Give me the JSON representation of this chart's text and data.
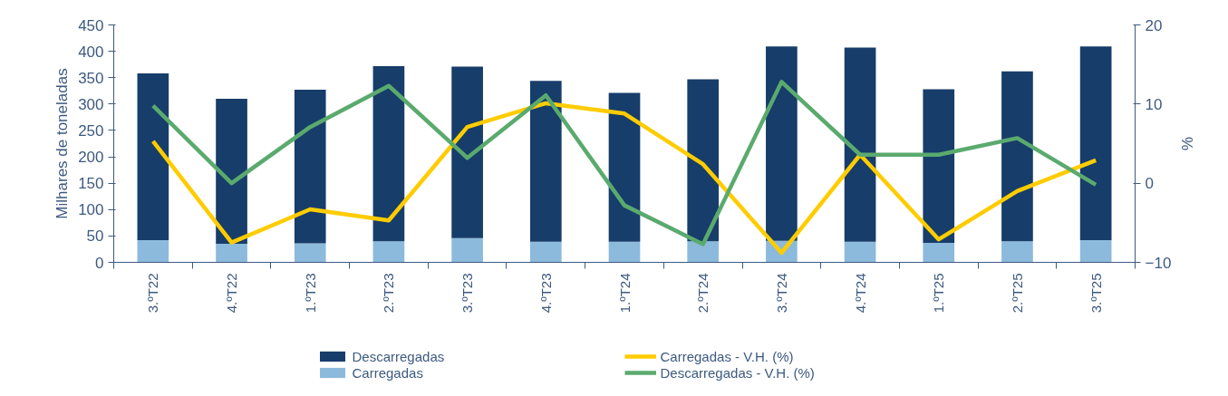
{
  "chart_data": {
    "type": "bar",
    "stacked": true,
    "categories": [
      "3.ºT22",
      "4.ºT22",
      "1.ºT23",
      "2.ºT23",
      "3.ºT23",
      "4.ºT23",
      "1.ºT24",
      "2.ºT24",
      "3.ºT24",
      "4.ºT24",
      "1.ºT25",
      "2.ºT25",
      "3.ºT25"
    ],
    "ylabel": "Milhares de toneladas",
    "y2label": "%",
    "ylim": [
      0,
      450
    ],
    "yticks": [
      0,
      50,
      100,
      150,
      200,
      250,
      300,
      350,
      400,
      450
    ],
    "y2lim": [
      -10,
      20
    ],
    "y2ticks": [
      -10,
      0,
      10,
      20
    ],
    "grid": false,
    "legend": "bottom",
    "series": [
      {
        "name": "Carregadas",
        "color": "#8cbadc",
        "values": [
          42,
          35,
          36,
          40,
          46,
          39,
          39,
          40,
          41,
          39,
          37,
          40,
          42
        ]
      },
      {
        "name": "Descarregadas",
        "color": "#173d6a",
        "values": [
          316,
          275,
          291,
          332,
          325,
          305,
          282,
          307,
          368,
          368,
          291,
          322,
          367
        ]
      },
      {
        "name": "Carregadas - V.H. (%)",
        "type": "line",
        "axis": "y2",
        "color": "#ffcc00",
        "values": [
          5.3,
          -7.5,
          -3.3,
          -4.7,
          7.1,
          10.1,
          8.8,
          2.4,
          -8.8,
          3.6,
          -7.1,
          -1.0,
          2.9
        ]
      },
      {
        "name": "Descarregadas - V.H. (%)",
        "type": "line",
        "axis": "y2",
        "color": "#5aaa6e",
        "values": [
          9.8,
          0.0,
          7.1,
          12.3,
          3.2,
          11.1,
          -2.8,
          -7.7,
          12.8,
          3.6,
          3.6,
          5.7,
          -0.2
        ]
      }
    ]
  }
}
